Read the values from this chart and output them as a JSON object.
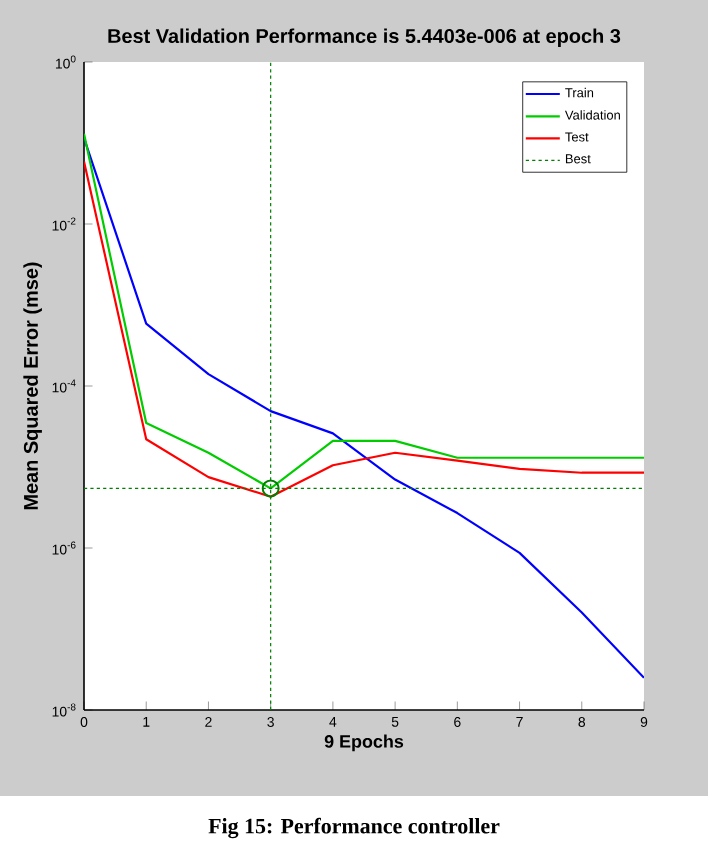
{
  "chart_data": {
    "type": "line",
    "title": "Best Validation Performance is 5.4403e-006 at epoch 3",
    "xlabel": "9 Epochs",
    "ylabel": "Mean Squared Error  (mse)",
    "x": [
      0,
      1,
      2,
      3,
      4,
      5,
      6,
      7,
      8,
      9
    ],
    "series": [
      {
        "name": "Train",
        "color": "#0000ff",
        "values": [
          0.115,
          0.00059,
          0.00014,
          4.9e-05,
          2.6e-05,
          7e-06,
          2.7e-06,
          8.7e-07,
          1.6e-07,
          2.5e-08
        ]
      },
      {
        "name": "Validation",
        "color": "#00cc00",
        "values": [
          0.13,
          3.5e-05,
          1.5e-05,
          5.4403e-06,
          2.1e-05,
          2.1e-05,
          1.3e-05,
          1.3e-05,
          1.3e-05,
          1.3e-05
        ]
      },
      {
        "name": "Test",
        "color": "#ff0000",
        "values": [
          0.059,
          2.2e-05,
          7.5e-06,
          4.3e-06,
          1.05e-05,
          1.5e-05,
          1.2e-05,
          9.5e-06,
          8.5e-06,
          8.5e-06
        ]
      },
      {
        "type": "scatter",
        "color": "#008000",
        "marker": "circle",
        "x": [
          3
        ],
        "values": [
          5.4403e-06
        ]
      }
    ],
    "log": "y",
    "xlim": [
      0,
      9
    ],
    "ylim": [
      1e-08,
      1
    ],
    "xticks": [
      0,
      1,
      2,
      3,
      4,
      5,
      6,
      7,
      8,
      9
    ],
    "yticks": [
      {
        "value": 1e-08,
        "label": "10$^{-8}$"
      },
      {
        "value": 1e-06,
        "label": "10$^{-6}$"
      },
      {
        "value": 0.0001,
        "label": "10$^{-4}$"
      },
      {
        "value": 0.01,
        "label": "10$^{-2}$"
      },
      {
        "value": 1,
        "label": "10$^{0}$"
      }
    ],
    "ref_lines": [
      {
        "axis": "y",
        "value": 5.4403e-06,
        "label": "Best",
        "color": "#008000",
        "line_style": "dotted"
      },
      {
        "axis": "x",
        "value": 3,
        "color": "#008000",
        "line_style": "dotted"
      }
    ],
    "legend": "top right",
    "marker": "none",
    "line_style": "solid",
    "annotations": [
      "Fig 15: Performance controller"
    ]
  }
}
